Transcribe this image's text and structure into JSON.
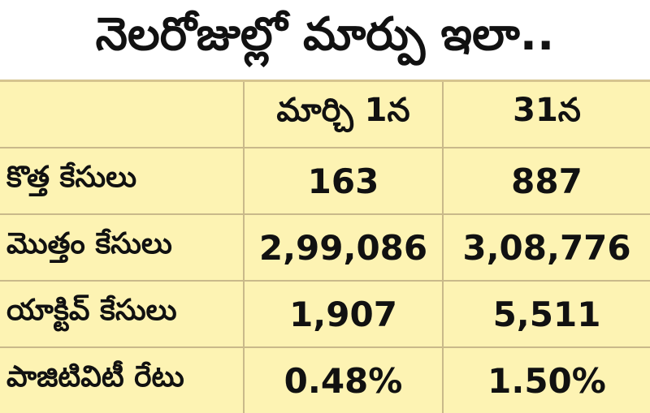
{
  "title": "నెలరోజుల్లో మార్పు ఇలా..",
  "table": {
    "headers": [
      "",
      "మార్చి 1న",
      "31న"
    ],
    "rows": [
      {
        "label": "కొత్త కేసులు",
        "march1": "163",
        "march31": "887"
      },
      {
        "label": "మొత్తం కేసులు",
        "march1": "2,99,086",
        "march31": "3,08,776"
      },
      {
        "label": "యాక్టివ్ కేసులు",
        "march1": "1,907",
        "march31": "5,511"
      },
      {
        "label": "పాజిటివిటీ రేటు",
        "march1": "0.48%",
        "march31": "1.50%"
      }
    ]
  },
  "colors": {
    "table_background": "#fdf3b3",
    "grid_line": "#c9b98a",
    "text": "#111111",
    "title_background": "#ffffff"
  }
}
